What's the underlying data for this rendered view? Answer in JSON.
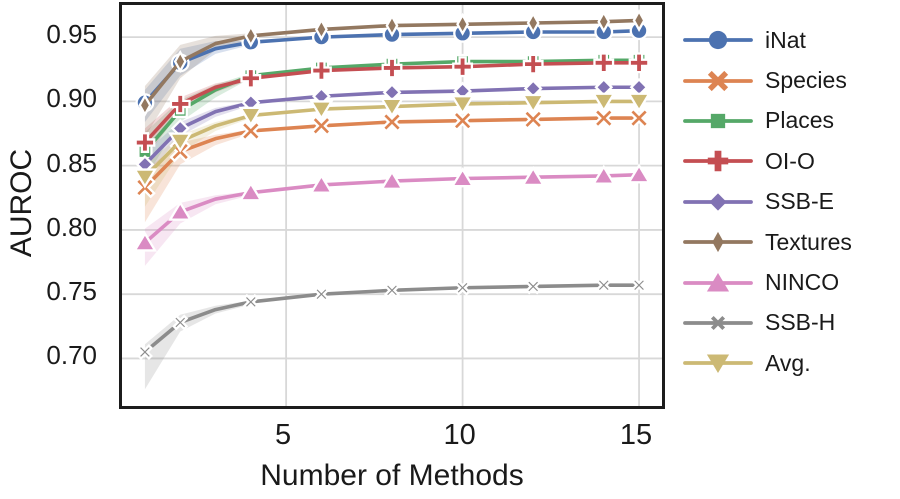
{
  "figure": {
    "background": "#ffffff",
    "grid_color": "#d8d8d8",
    "axis_color": "#1c1c1c",
    "text_color": "#1a1a1a"
  },
  "chart_data": {
    "type": "line",
    "title": "",
    "xlabel": "Number of Methods",
    "ylabel": "AUROC",
    "x": [
      1,
      2,
      3,
      4,
      6,
      8,
      10,
      12,
      14,
      15
    ],
    "marker_x": [
      1,
      2,
      4,
      6,
      8,
      10,
      12,
      14,
      15
    ],
    "xticks": [
      5,
      10,
      15
    ],
    "yticks": [
      0.7,
      0.75,
      0.8,
      0.85,
      0.9,
      0.95
    ],
    "xlim": [
      0.35,
      15.65
    ],
    "ylim": [
      0.663,
      0.975
    ],
    "grid": true,
    "legend_position": "right",
    "band_x": [
      1,
      2,
      3,
      4
    ],
    "series": [
      {
        "name": "iNat",
        "color": "#4C72B0",
        "marker": "circle",
        "values": [
          0.899,
          0.93,
          0.941,
          0.946,
          0.95,
          0.952,
          0.953,
          0.954,
          0.954,
          0.955
        ],
        "band_lo": [
          0.884,
          0.92,
          0.937,
          0.944
        ],
        "band_hi": [
          0.909,
          0.941,
          0.947,
          0.947
        ]
      },
      {
        "name": "Species",
        "color": "#DD8452",
        "marker": "x-bold-large",
        "values": [
          0.833,
          0.861,
          0.871,
          0.877,
          0.881,
          0.884,
          0.885,
          0.886,
          0.887,
          0.887
        ],
        "band_lo": [
          0.806,
          0.851,
          0.866,
          0.875
        ],
        "band_hi": [
          0.846,
          0.868,
          0.874,
          0.878
        ]
      },
      {
        "name": "Places",
        "color": "#55A868",
        "marker": "square",
        "values": [
          0.861,
          0.893,
          0.909,
          0.92,
          0.926,
          0.929,
          0.931,
          0.931,
          0.932,
          0.932
        ],
        "band_lo": [
          0.84,
          0.884,
          0.903,
          0.918
        ],
        "band_hi": [
          0.876,
          0.901,
          0.913,
          0.922
        ]
      },
      {
        "name": "OI-O",
        "color": "#C44E52",
        "marker": "plus",
        "values": [
          0.868,
          0.898,
          0.911,
          0.918,
          0.924,
          0.926,
          0.927,
          0.929,
          0.93,
          0.93
        ],
        "band_lo": [
          0.856,
          0.892,
          0.907,
          0.917
        ],
        "band_hi": [
          0.879,
          0.903,
          0.914,
          0.919
        ]
      },
      {
        "name": "SSB-E",
        "color": "#8172B3",
        "marker": "diamond",
        "values": [
          0.851,
          0.879,
          0.892,
          0.899,
          0.904,
          0.907,
          0.908,
          0.91,
          0.911,
          0.911
        ],
        "band_lo": [
          0.841,
          0.873,
          0.888,
          0.897
        ],
        "band_hi": [
          0.861,
          0.884,
          0.895,
          0.9
        ]
      },
      {
        "name": "Textures",
        "color": "#937860",
        "marker": "thin-diamond",
        "values": [
          0.897,
          0.931,
          0.945,
          0.951,
          0.956,
          0.959,
          0.96,
          0.961,
          0.962,
          0.963
        ],
        "band_lo": [
          0.872,
          0.918,
          0.94,
          0.949
        ],
        "band_hi": [
          0.912,
          0.944,
          0.951,
          0.953
        ]
      },
      {
        "name": "NINCO",
        "color": "#DA8BC3",
        "marker": "triangle-up",
        "values": [
          0.79,
          0.814,
          0.824,
          0.829,
          0.835,
          0.838,
          0.84,
          0.841,
          0.842,
          0.843
        ],
        "band_lo": [
          0.772,
          0.805,
          0.82,
          0.827
        ],
        "band_hi": [
          0.801,
          0.821,
          0.827,
          0.83
        ]
      },
      {
        "name": "SSB-H",
        "color": "#8C8C8C",
        "marker": "x-bold-small",
        "values": [
          0.705,
          0.728,
          0.738,
          0.744,
          0.75,
          0.753,
          0.755,
          0.756,
          0.757,
          0.757
        ],
        "band_lo": [
          0.676,
          0.721,
          0.735,
          0.742
        ],
        "band_hi": [
          0.711,
          0.734,
          0.741,
          0.745
        ]
      },
      {
        "name": "Avg.",
        "color": "#CCB974",
        "marker": "triangle-down",
        "values": [
          0.841,
          0.869,
          0.881,
          0.889,
          0.894,
          0.896,
          0.898,
          0.899,
          0.9,
          0.9
        ],
        "band_lo": [
          0.818,
          0.86,
          0.877,
          0.887
        ],
        "band_hi": [
          0.85,
          0.874,
          0.884,
          0.89
        ]
      }
    ]
  }
}
